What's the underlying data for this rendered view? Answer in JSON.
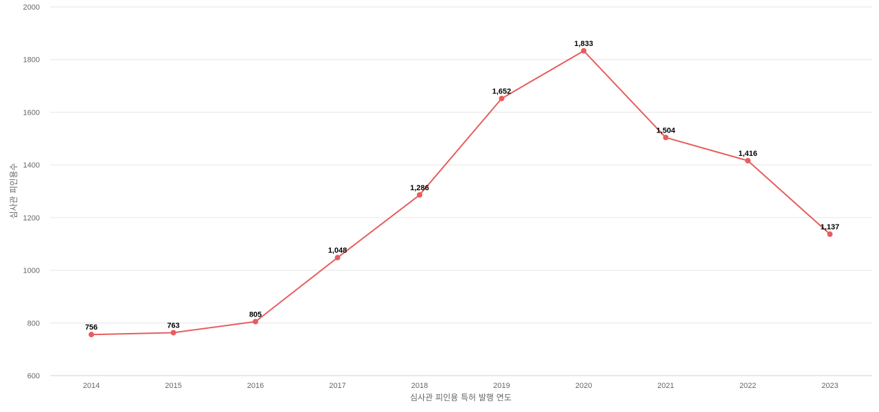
{
  "chart_data": {
    "type": "line",
    "title": "",
    "xlabel": "심사관 피인용 특허 발행 연도",
    "ylabel": "심사관 피인용수",
    "categories": [
      "2014",
      "2015",
      "2016",
      "2017",
      "2018",
      "2019",
      "2020",
      "2021",
      "2022",
      "2023"
    ],
    "series": [
      {
        "values": [
          756,
          763,
          805,
          1048,
          1286,
          1652,
          1833,
          1504,
          1416,
          1137
        ],
        "labels": [
          "756",
          "763",
          "805",
          "1,048",
          "1,286",
          "1,652",
          "1,833",
          "1,504",
          "1,416",
          "1,137"
        ],
        "color": "#e85c5c"
      }
    ],
    "ylim": [
      600,
      2000
    ],
    "yticks": [
      600,
      800,
      1000,
      1200,
      1400,
      1600,
      1800,
      2000
    ],
    "grid": true,
    "legend": "none"
  }
}
